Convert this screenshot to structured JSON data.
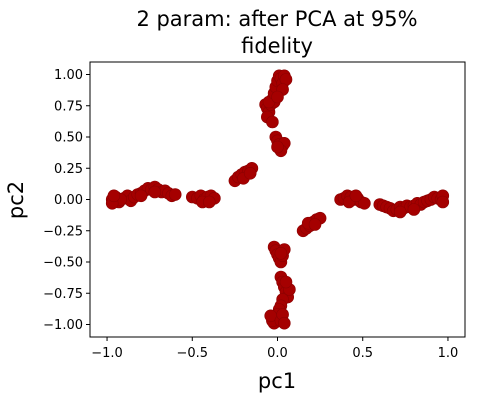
{
  "chart_data": {
    "type": "scatter",
    "title_lines": [
      "2 param: after PCA at 95%",
      "fidelity"
    ],
    "xlabel": "pc1",
    "ylabel": "pc2",
    "xlim": [
      -1.1,
      1.1
    ],
    "ylim": [
      -1.1,
      1.1
    ],
    "xticks": [
      {
        "value": -1.0,
        "label": "−1.0"
      },
      {
        "value": -0.5,
        "label": "−0.5"
      },
      {
        "value": 0.0,
        "label": "0.0"
      },
      {
        "value": 0.5,
        "label": "0.5"
      },
      {
        "value": 1.0,
        "label": "1.0"
      }
    ],
    "yticks": [
      {
        "value": 1.0,
        "label": "1.00"
      },
      {
        "value": 0.75,
        "label": "0.75"
      },
      {
        "value": 0.5,
        "label": "0.50"
      },
      {
        "value": 0.25,
        "label": "0.25"
      },
      {
        "value": 0.0,
        "label": "0.00"
      },
      {
        "value": -0.25,
        "label": "−0.25"
      },
      {
        "value": -0.5,
        "label": "−0.50"
      },
      {
        "value": -0.75,
        "label": "−0.75"
      },
      {
        "value": -1.0,
        "label": "−1.00"
      }
    ],
    "grid": false,
    "legend": "none",
    "marker_color": "#a50000",
    "series": [
      {
        "points": [
          [
            -0.97,
            0.0
          ],
          [
            -0.95,
            0.02
          ],
          [
            -0.93,
            -0.02
          ],
          [
            -0.9,
            0.01
          ],
          [
            -0.88,
            0.03
          ],
          [
            -0.86,
            -0.01
          ],
          [
            -0.84,
            0.02
          ],
          [
            -0.82,
            0.04
          ],
          [
            -0.8,
            0.05
          ],
          [
            -0.78,
            0.07
          ],
          [
            -0.76,
            0.09
          ],
          [
            -0.74,
            0.08
          ],
          [
            -0.72,
            0.1
          ],
          [
            -0.7,
            0.08
          ],
          [
            -0.68,
            0.06
          ],
          [
            -0.66,
            0.07
          ],
          [
            -0.64,
            0.05
          ],
          [
            -0.62,
            0.03
          ],
          [
            -0.6,
            0.04
          ],
          [
            -0.72,
            0.06
          ],
          [
            -0.8,
            0.03
          ],
          [
            -0.92,
            0.0
          ],
          [
            -0.97,
            -0.03
          ],
          [
            -0.96,
            0.03
          ],
          [
            -0.5,
            0.02
          ],
          [
            -0.47,
            0.01
          ],
          [
            -0.45,
            0.03
          ],
          [
            -0.43,
            0.0
          ],
          [
            -0.41,
            0.02
          ],
          [
            -0.39,
            0.03
          ],
          [
            -0.37,
            0.01
          ],
          [
            -0.44,
            -0.02
          ],
          [
            -0.4,
            -0.02
          ],
          [
            -0.25,
            0.15
          ],
          [
            -0.23,
            0.18
          ],
          [
            -0.21,
            0.2
          ],
          [
            -0.19,
            0.22
          ],
          [
            -0.17,
            0.23
          ],
          [
            -0.15,
            0.25
          ],
          [
            -0.2,
            0.17
          ],
          [
            -0.16,
            0.21
          ],
          [
            -0.07,
            0.76
          ],
          [
            -0.06,
            0.73
          ],
          [
            -0.05,
            0.7
          ],
          [
            -0.04,
            0.76
          ],
          [
            -0.03,
            0.8
          ],
          [
            -0.02,
            0.78
          ],
          [
            -0.06,
            0.66
          ],
          [
            -0.03,
            0.62
          ],
          [
            -0.05,
            0.78
          ],
          [
            -0.02,
            0.85
          ],
          [
            -0.01,
            0.9
          ],
          [
            0.0,
            0.95
          ],
          [
            0.01,
            0.99
          ],
          [
            0.02,
            0.97
          ],
          [
            0.03,
            0.93
          ],
          [
            0.04,
            0.99
          ],
          [
            0.05,
            0.96
          ],
          [
            0.03,
            0.88
          ],
          [
            0.0,
            0.82
          ],
          [
            -0.01,
            0.5
          ],
          [
            0.0,
            0.47
          ],
          [
            0.01,
            0.44
          ],
          [
            0.02,
            0.41
          ],
          [
            0.03,
            0.43
          ],
          [
            0.04,
            0.45
          ],
          [
            0.02,
            0.39
          ],
          [
            0.0,
            0.42
          ],
          [
            0.15,
            -0.25
          ],
          [
            0.17,
            -0.23
          ],
          [
            0.19,
            -0.21
          ],
          [
            0.21,
            -0.18
          ],
          [
            0.23,
            -0.16
          ],
          [
            0.25,
            -0.15
          ],
          [
            0.18,
            -0.19
          ],
          [
            0.22,
            -0.2
          ],
          [
            0.37,
            0.0
          ],
          [
            0.39,
            0.01
          ],
          [
            0.41,
            0.03
          ],
          [
            0.43,
            0.02
          ],
          [
            0.45,
            0.0
          ],
          [
            0.47,
            0.01
          ],
          [
            0.49,
            -0.02
          ],
          [
            0.51,
            -0.03
          ],
          [
            0.42,
            -0.02
          ],
          [
            0.46,
            0.03
          ],
          [
            0.6,
            -0.04
          ],
          [
            0.62,
            -0.05
          ],
          [
            0.64,
            -0.06
          ],
          [
            0.66,
            -0.07
          ],
          [
            0.68,
            -0.09
          ],
          [
            0.7,
            -0.08
          ],
          [
            0.72,
            -0.06
          ],
          [
            0.74,
            -0.07
          ],
          [
            0.76,
            -0.05
          ],
          [
            0.78,
            -0.06
          ],
          [
            0.8,
            -0.05
          ],
          [
            0.82,
            -0.03
          ],
          [
            0.84,
            -0.04
          ],
          [
            0.86,
            -0.02
          ],
          [
            0.88,
            -0.01
          ],
          [
            0.9,
            0.0
          ],
          [
            0.92,
            0.02
          ],
          [
            0.94,
            0.01
          ],
          [
            0.96,
            0.0
          ],
          [
            0.97,
            0.03
          ],
          [
            0.97,
            -0.02
          ],
          [
            0.72,
            -0.1
          ],
          [
            0.8,
            -0.08
          ],
          [
            -0.02,
            -0.38
          ],
          [
            -0.01,
            -0.41
          ],
          [
            0.0,
            -0.44
          ],
          [
            0.01,
            -0.47
          ],
          [
            0.02,
            -0.5
          ],
          [
            0.03,
            -0.45
          ],
          [
            0.04,
            -0.4
          ],
          [
            0.02,
            -0.43
          ],
          [
            0.02,
            -0.62
          ],
          [
            0.03,
            -0.66
          ],
          [
            0.04,
            -0.7
          ],
          [
            0.05,
            -0.74
          ],
          [
            0.06,
            -0.78
          ],
          [
            0.07,
            -0.72
          ],
          [
            0.05,
            -0.66
          ],
          [
            0.03,
            -0.8
          ],
          [
            0.02,
            -0.85
          ],
          [
            0.01,
            -0.88
          ],
          [
            0.0,
            -0.92
          ],
          [
            -0.01,
            -0.96
          ],
          [
            -0.02,
            -0.99
          ],
          [
            -0.03,
            -0.97
          ],
          [
            -0.04,
            -0.93
          ],
          [
            0.02,
            -0.97
          ],
          [
            0.03,
            -0.92
          ],
          [
            0.04,
            -0.99
          ]
        ]
      }
    ]
  }
}
